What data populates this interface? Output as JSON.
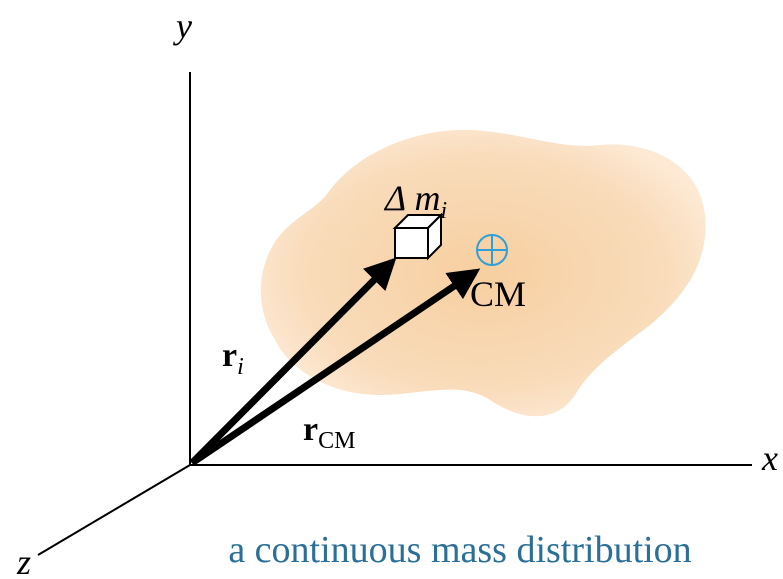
{
  "axes": {
    "x": "x",
    "y": "y",
    "z": "z"
  },
  "mass_element": {
    "label": "Δ m",
    "subscript": "i"
  },
  "center_of_mass": {
    "label": "CM"
  },
  "vectors": [
    {
      "label": "r",
      "subscript": "i"
    },
    {
      "label": "r",
      "subscript": "CM"
    }
  ],
  "caption": "a continuous mass distribution"
}
